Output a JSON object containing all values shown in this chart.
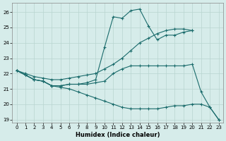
{
  "title": "",
  "xlabel": "Humidex (Indice chaleur)",
  "ylabel": "",
  "background_color": "#d6ecea",
  "grid_color": "#b8d4d0",
  "line_color": "#1a6b6b",
  "xlim": [
    -0.5,
    23.5
  ],
  "ylim": [
    18.8,
    26.6
  ],
  "yticks": [
    19,
    20,
    21,
    22,
    23,
    24,
    25,
    26
  ],
  "xticks": [
    0,
    1,
    2,
    3,
    4,
    5,
    6,
    7,
    8,
    9,
    10,
    11,
    12,
    13,
    14,
    15,
    16,
    17,
    18,
    19,
    20,
    21,
    22,
    23
  ],
  "series": [
    {
      "x": [
        0,
        1,
        2,
        3,
        4,
        5,
        6,
        7,
        8,
        9,
        10,
        11,
        12,
        13,
        14,
        15,
        16,
        17,
        18,
        19,
        20
      ],
      "y": [
        22.2,
        21.9,
        21.6,
        21.5,
        21.2,
        21.2,
        21.3,
        21.3,
        21.4,
        21.6,
        23.7,
        25.7,
        25.6,
        26.1,
        26.2,
        25.1,
        24.2,
        24.5,
        24.5,
        24.7,
        24.8
      ]
    },
    {
      "x": [
        0,
        1,
        2,
        3,
        4,
        5,
        6,
        7,
        8,
        9,
        10,
        11,
        12,
        13,
        14,
        15,
        16,
        17,
        18,
        19,
        20
      ],
      "y": [
        22.2,
        22.0,
        21.8,
        21.7,
        21.6,
        21.6,
        21.7,
        21.8,
        21.9,
        22.0,
        22.3,
        22.6,
        23.0,
        23.5,
        24.0,
        24.3,
        24.6,
        24.8,
        24.9,
        24.9,
        24.8
      ]
    },
    {
      "x": [
        0,
        1,
        2,
        3,
        4,
        5,
        6,
        7,
        8,
        9,
        10,
        11,
        12,
        13,
        14,
        15,
        16,
        17,
        18,
        19,
        20,
        21,
        22,
        23
      ],
      "y": [
        22.2,
        21.9,
        21.6,
        21.5,
        21.2,
        21.2,
        21.3,
        21.3,
        21.3,
        21.4,
        21.5,
        22.0,
        22.3,
        22.5,
        22.5,
        22.5,
        22.5,
        22.5,
        22.5,
        22.5,
        22.6,
        20.8,
        19.8,
        19.0
      ]
    },
    {
      "x": [
        0,
        1,
        2,
        3,
        4,
        5,
        6,
        7,
        8,
        9,
        10,
        11,
        12,
        13,
        14,
        15,
        16,
        17,
        18,
        19,
        20,
        21,
        22,
        23
      ],
      "y": [
        22.2,
        21.9,
        21.6,
        21.5,
        21.2,
        21.1,
        21.0,
        20.8,
        20.6,
        20.4,
        20.2,
        20.0,
        19.8,
        19.7,
        19.7,
        19.7,
        19.7,
        19.8,
        19.9,
        19.9,
        20.0,
        20.0,
        19.8,
        19.0
      ]
    }
  ]
}
